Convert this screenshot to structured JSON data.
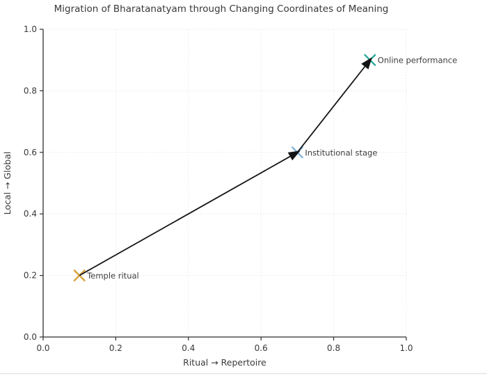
{
  "chart_data": {
    "type": "scatter",
    "title": "Migration of Bharatanatyam through Changing Coordinates of Meaning",
    "xlabel": "Ritual → Repertoire",
    "ylabel": "Local → Global",
    "xlim": [
      0.0,
      1.0
    ],
    "ylim": [
      0.0,
      1.0
    ],
    "xtick_values": [
      0.0,
      0.2,
      0.4,
      0.6,
      0.8,
      1.0
    ],
    "xtick_labels": [
      "0.0",
      "0.2",
      "0.4",
      "0.6",
      "0.8",
      "1.0"
    ],
    "ytick_values": [
      0.0,
      0.2,
      0.4,
      0.6,
      0.8,
      1.0
    ],
    "ytick_labels": [
      "0.0",
      "0.2",
      "0.4",
      "0.6",
      "0.8",
      "1.0"
    ],
    "grid": true,
    "legend": "none",
    "points": [
      {
        "label": "Temple ritual",
        "x": 0.1,
        "y": 0.2,
        "marker": "x",
        "color": "#d9a43c"
      },
      {
        "label": "Institutional stage",
        "x": 0.7,
        "y": 0.6,
        "marker": "x",
        "color": "#7fb2d9"
      },
      {
        "label": "Online performance",
        "x": 0.9,
        "y": 0.9,
        "marker": "x",
        "color": "#2aa79a"
      }
    ],
    "arrows": [
      {
        "from": 0,
        "to": 1
      },
      {
        "from": 1,
        "to": 2
      }
    ],
    "colors": {
      "arrow": "#141414",
      "text": "#3a3a3a",
      "spine": "#2f2f2f",
      "grid": "#e7e7e7",
      "background": "#ffffff"
    }
  }
}
